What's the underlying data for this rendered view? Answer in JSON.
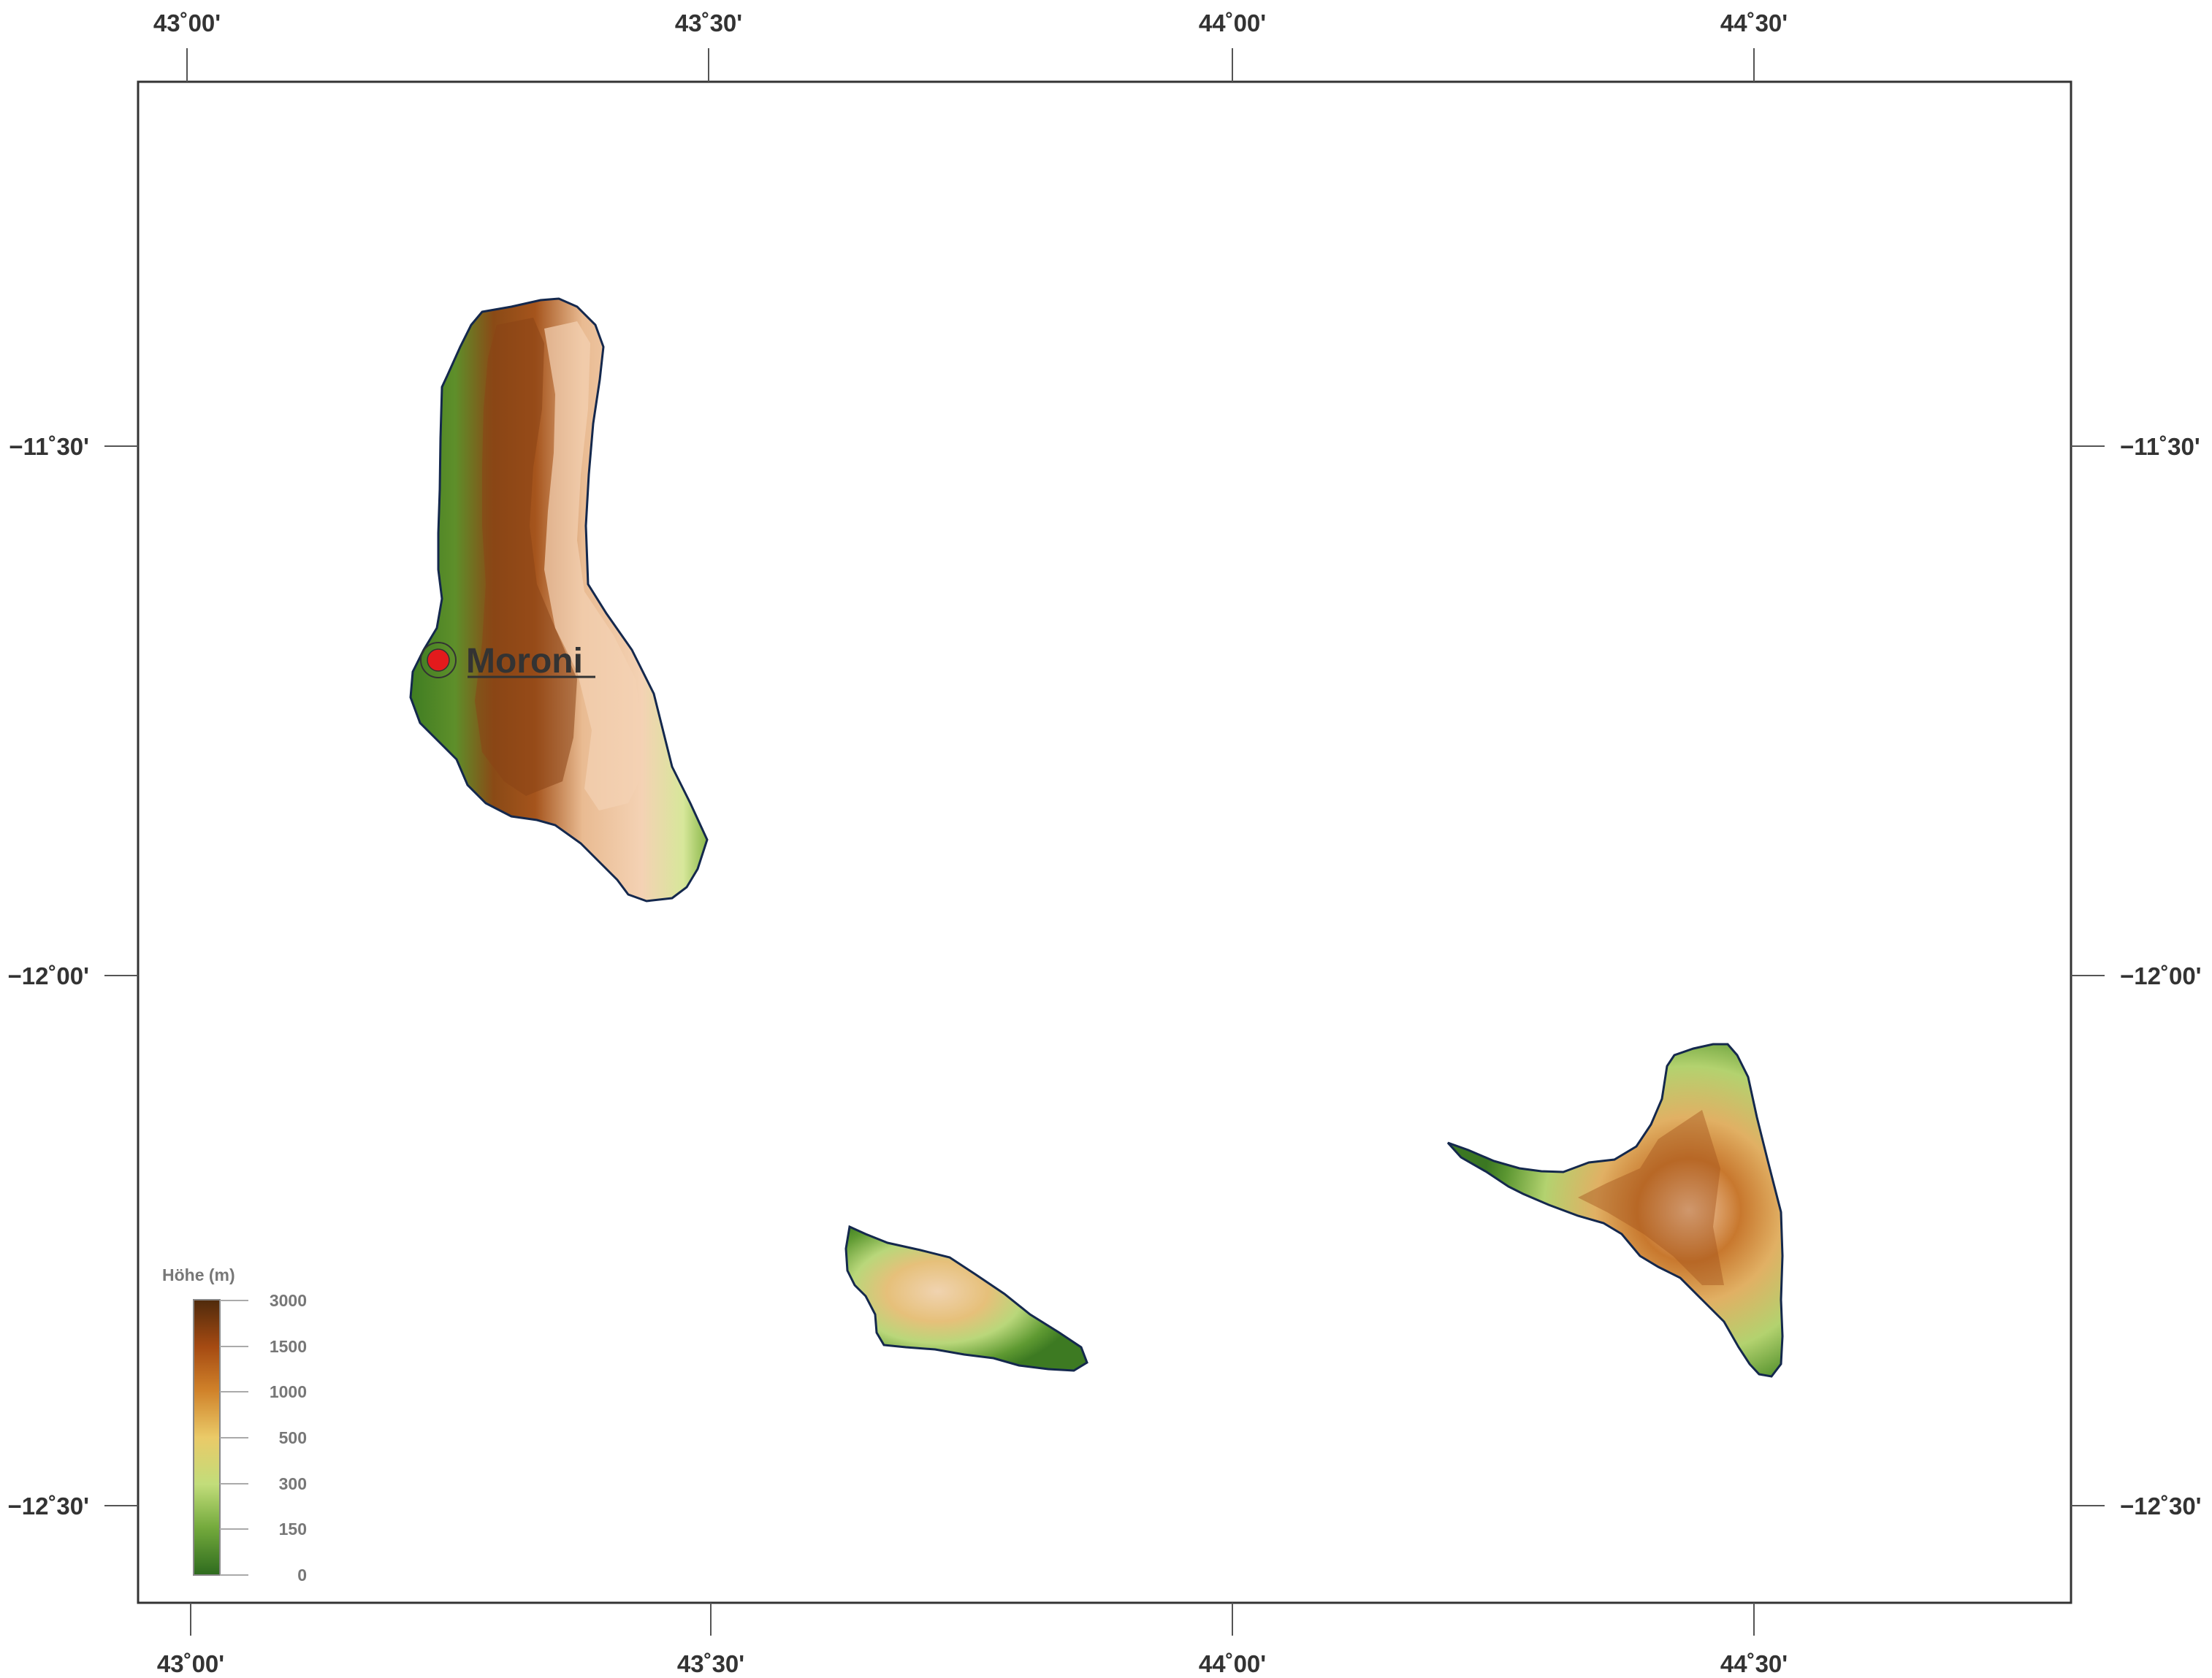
{
  "map": {
    "lon_ticks": [
      "43˚00'",
      "43˚30'",
      "44˚00'",
      "44˚30'"
    ],
    "lat_ticks": [
      "−11˚30'",
      "−12˚00'",
      "−12˚30'"
    ],
    "city": {
      "name": "Moroni",
      "marker_color": "#e31a1c"
    },
    "legend": {
      "title": "Höhe  (m)",
      "ticks": [
        "3000",
        "1500",
        "1000",
        "500",
        "300",
        "150",
        "0"
      ],
      "colors": [
        "#4f2a0c",
        "#a54a12",
        "#d0822a",
        "#eaca68",
        "#c2dd7a",
        "#73a93c",
        "#2e6b1e"
      ]
    },
    "colors": {
      "frame": "#333333",
      "coastline": "#14284d",
      "lowland": "#3f7d22",
      "highland": "#7a3b12",
      "ridge": "#f2c9a8"
    }
  }
}
